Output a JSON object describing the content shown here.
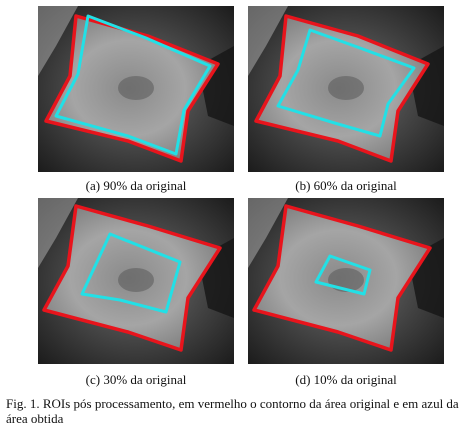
{
  "panels": [
    {
      "caption": "(a) 90% da original",
      "ratio": 0.9
    },
    {
      "caption": "(b) 60% da original",
      "ratio": 0.6
    },
    {
      "caption": "(c) 30% da original",
      "ratio": 0.3
    },
    {
      "caption": "(d) 10% da original",
      "ratio": 0.1
    }
  ],
  "figure": {
    "caption": "Fig. 1.  ROIs pós processamento, em vermelho o contorno da área original e em azul da área obtida"
  },
  "colors": {
    "original_contour": "#e8141c",
    "obtained_contour": "#22e0e6"
  }
}
